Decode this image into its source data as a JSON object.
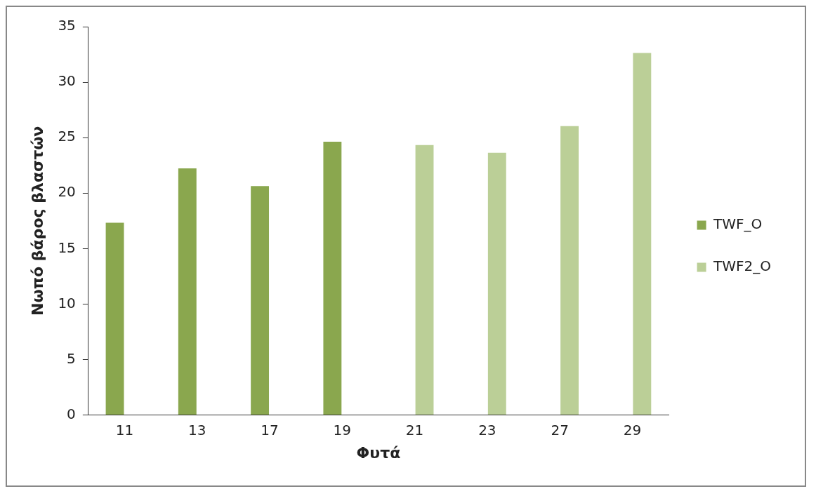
{
  "chart_data": {
    "type": "bar",
    "xlabel": "Φυτά",
    "ylabel": "Νωπό βάρος βλαστών",
    "categories": [
      "11",
      "13",
      "17",
      "19",
      "21",
      "23",
      "27",
      "29"
    ],
    "series": [
      {
        "name": "TWF_O",
        "color": "#8aa74e",
        "values": [
          17.4,
          22.3,
          20.7,
          24.7,
          null,
          null,
          null,
          null
        ]
      },
      {
        "name": "TWF2_O",
        "color": "#bbcf97",
        "values": [
          null,
          null,
          null,
          null,
          24.4,
          23.7,
          26.1,
          32.7
        ]
      }
    ],
    "ylim": [
      0,
      35
    ],
    "yticks": [
      0,
      5,
      10,
      15,
      20,
      25,
      30,
      35
    ],
    "grid": false,
    "legend": "right"
  }
}
